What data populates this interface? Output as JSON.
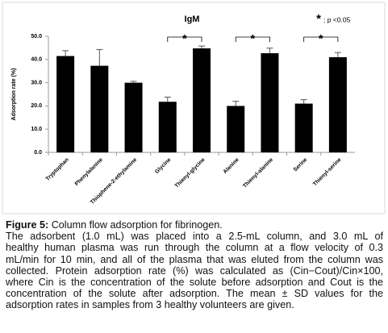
{
  "chart_data": {
    "type": "bar",
    "title": "IgM",
    "y_label": "Adsorption rate (%)",
    "categories": [
      "Tryptophan",
      "Phenylalanine",
      "Thiophene-2-ethylamine",
      "Glycine",
      "Thienyl-glycine",
      "Alanine",
      "Thienyl-alanine",
      "Serine",
      "Thienyl-serine"
    ],
    "values": [
      41.5,
      37.3,
      30,
      21.8,
      44.8,
      20,
      42.7,
      21,
      41
    ],
    "errors": [
      2.3,
      7,
      0.6,
      2,
      1,
      2,
      2.2,
      1.7,
      2
    ],
    "color": "#000000",
    "ylim": [
      0,
      50
    ],
    "yticks": [
      {
        "value": 0,
        "label": "0.0"
      },
      {
        "value": 10,
        "label": "10.0"
      },
      {
        "value": 20,
        "label": "20.0"
      },
      {
        "value": 30,
        "label": "30.0"
      },
      {
        "value": 40,
        "label": "40.0"
      },
      {
        "value": 50,
        "label": "50.0"
      }
    ],
    "grid": false,
    "significance": [
      {
        "from": 3,
        "to": 4,
        "label": "*"
      },
      {
        "from": 5,
        "to": 6,
        "label": "*"
      },
      {
        "from": 7,
        "to": 8,
        "label": "*"
      }
    ],
    "legend": {
      "symbol": "*",
      "text": "; p <0.05"
    }
  },
  "caption": {
    "label": "Figure 5:",
    "title": "Column flow adsorption for fibrinogen.",
    "lines": [
      "The adsorbent (1.0 mL) was placed into a 2.5-mL column, and 3.0 mL of",
      "healthy human plasma was run through the column at a flow velocity of 0.3",
      "mL/min for 10 min, and all of the plasma that was eluted from the column was",
      "collected. Protein adsorption rate (%) was calculated as (Cin−Cout)/Cin×100,",
      "where Cin is the concentration of the solute before adsorption and Cout is the",
      "concentration of the solute after adsorption. The mean ± SD values for the",
      "adsorption rates in samples from 3 healthy volunteers are given."
    ]
  }
}
